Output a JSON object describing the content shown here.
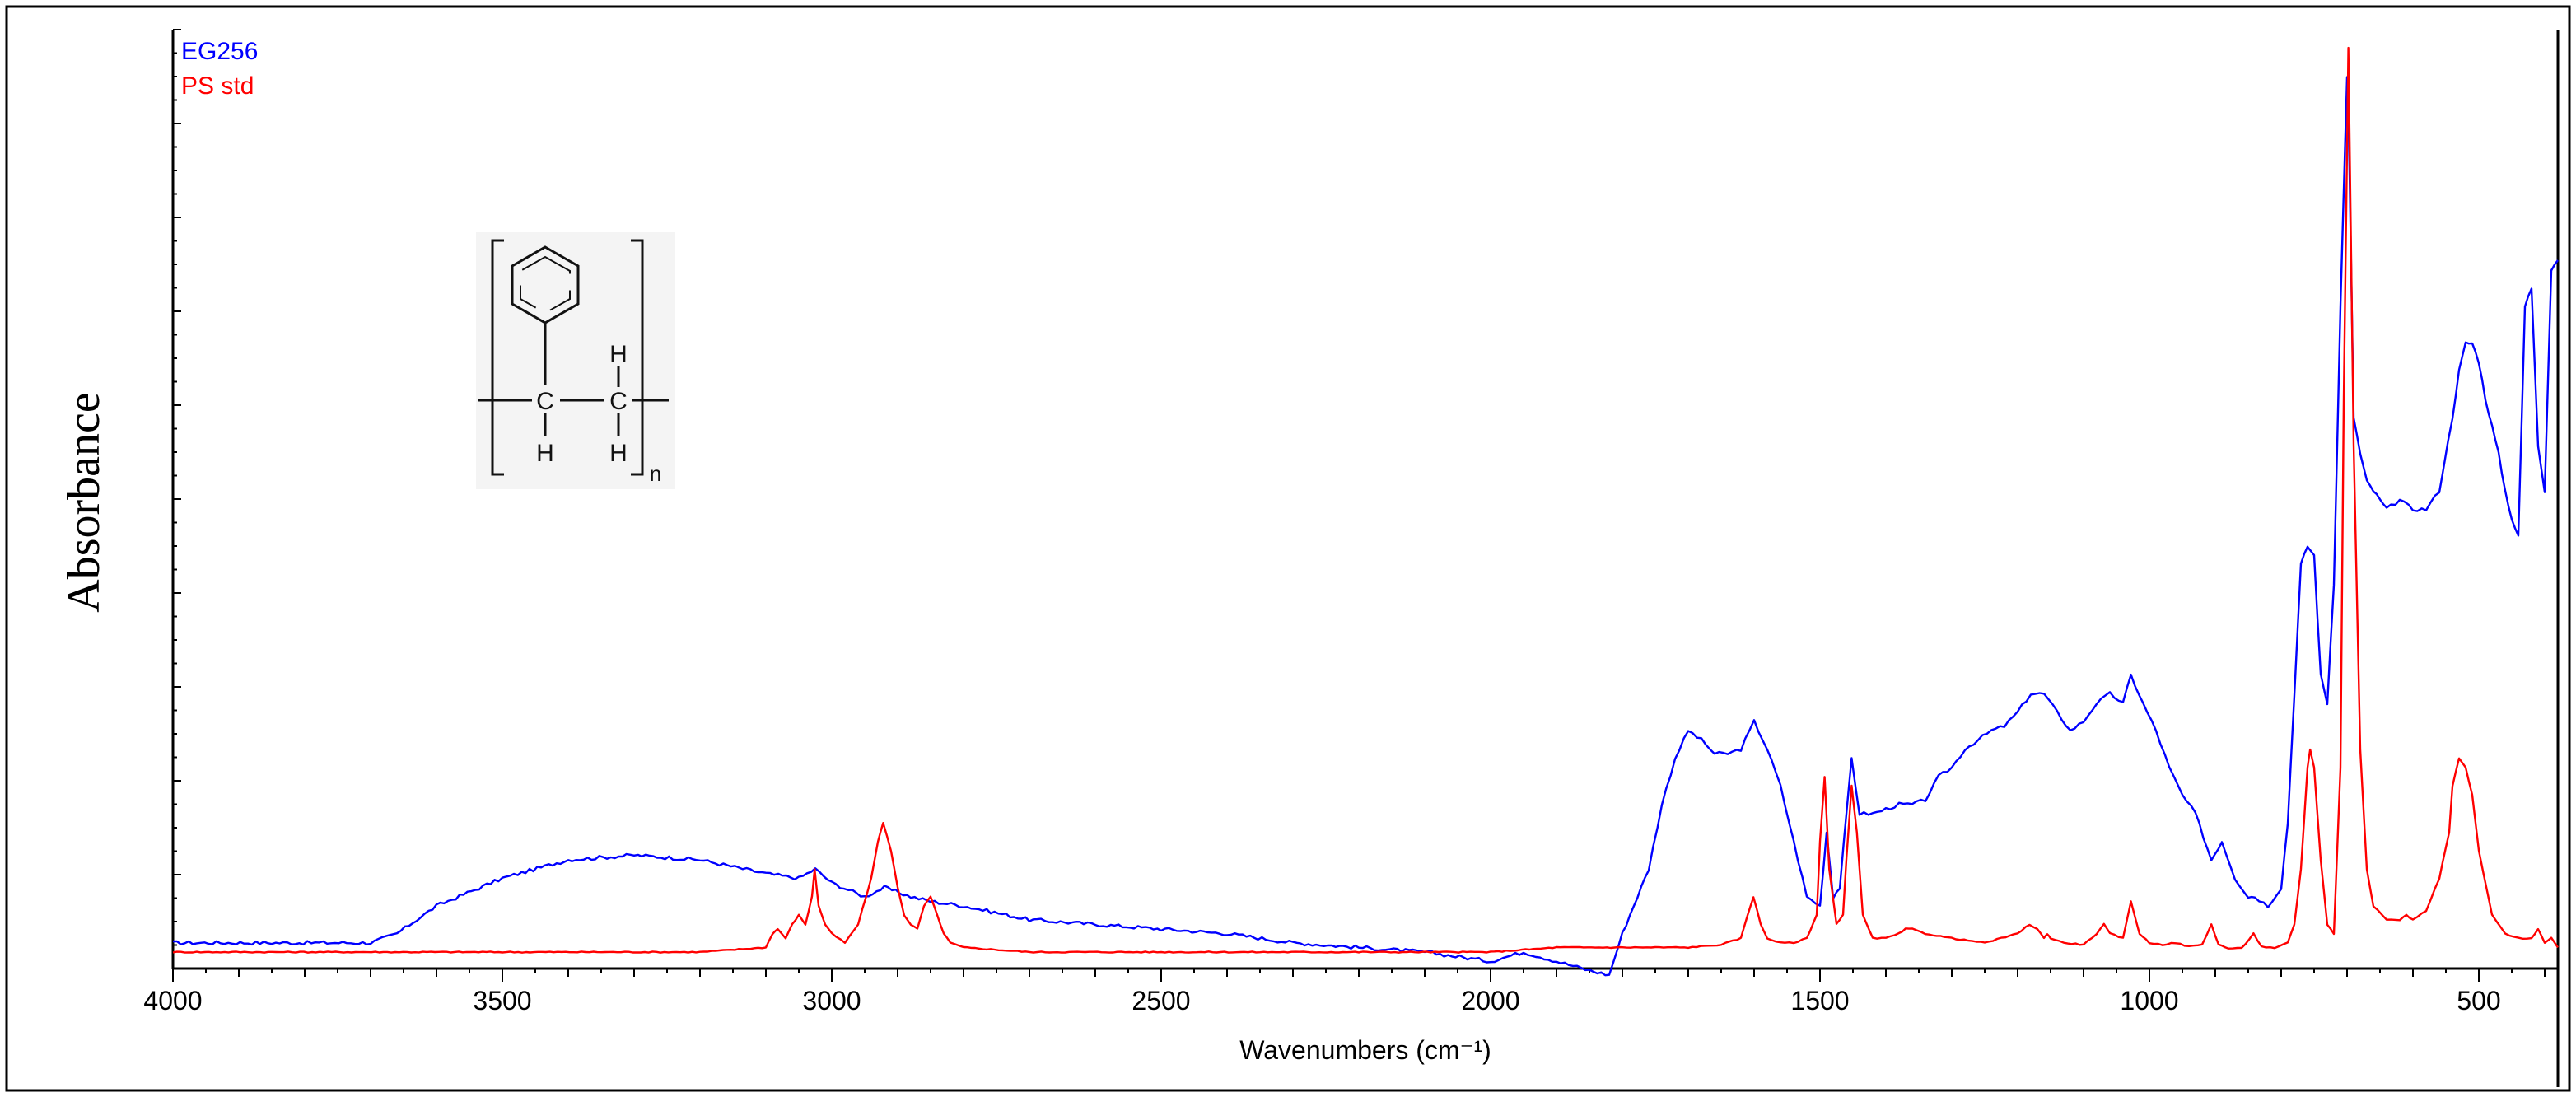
{
  "chart_data": {
    "type": "line",
    "title": "",
    "xlabel": "Wavenumbers (cm⁻¹)",
    "ylabel": "Absorbance",
    "xlim": [
      4000,
      380
    ],
    "x_reversed": true,
    "ylim": [
      0,
      1.0
    ],
    "y_tick_labels_shown": false,
    "x_ticks": [
      4000,
      3500,
      3000,
      2500,
      2000,
      1500,
      1000,
      500
    ],
    "x_tick_labels": [
      "4000",
      "3500",
      "3000",
      "2500",
      "2000",
      "1500",
      "1000",
      "500"
    ],
    "grid": false,
    "legend_position": "top-left",
    "series": [
      {
        "name": "EG256",
        "color": "#0000ff",
        "x": [
          4000,
          3700,
          3660,
          3600,
          3500,
          3400,
          3300,
          3200,
          3100,
          3050,
          3025,
          3000,
          2950,
          2920,
          2880,
          2850,
          2800,
          2700,
          2600,
          2500,
          2400,
          2300,
          2200,
          2100,
          2000,
          1950,
          1900,
          1850,
          1820,
          1800,
          1760,
          1740,
          1720,
          1700,
          1680,
          1660,
          1640,
          1620,
          1600,
          1580,
          1560,
          1540,
          1520,
          1500,
          1490,
          1480,
          1470,
          1452,
          1440,
          1420,
          1400,
          1380,
          1360,
          1340,
          1320,
          1300,
          1280,
          1260,
          1240,
          1220,
          1200,
          1180,
          1160,
          1140,
          1120,
          1100,
          1080,
          1060,
          1040,
          1028,
          1010,
          990,
          970,
          950,
          930,
          906,
          890,
          870,
          850,
          840,
          820,
          800,
          790,
          780,
          770,
          760,
          750,
          740,
          730,
          720,
          710,
          700,
          698,
          690,
          680,
          670,
          660,
          650,
          640,
          620,
          600,
          580,
          560,
          540,
          530,
          520,
          510,
          500,
          490,
          480,
          470,
          460,
          450,
          440,
          430,
          420,
          410,
          400,
          390,
          380
        ],
        "y": [
          0.01,
          0.01,
          0.02,
          0.05,
          0.08,
          0.1,
          0.105,
          0.1,
          0.085,
          0.08,
          0.09,
          0.075,
          0.06,
          0.07,
          0.06,
          0.055,
          0.05,
          0.035,
          0.03,
          0.025,
          0.02,
          0.01,
          0.005,
          0.0,
          -0.01,
          0.0,
          -0.01,
          -0.02,
          -0.025,
          0.02,
          0.09,
          0.16,
          0.21,
          0.24,
          0.23,
          0.215,
          0.215,
          0.22,
          0.25,
          0.22,
          0.18,
          0.12,
          0.06,
          0.05,
          0.13,
          0.06,
          0.07,
          0.21,
          0.15,
          0.15,
          0.155,
          0.16,
          0.16,
          0.165,
          0.19,
          0.2,
          0.22,
          0.23,
          0.24,
          0.245,
          0.26,
          0.28,
          0.28,
          0.26,
          0.24,
          0.25,
          0.27,
          0.28,
          0.27,
          0.3,
          0.27,
          0.24,
          0.2,
          0.17,
          0.15,
          0.1,
          0.12,
          0.08,
          0.06,
          0.06,
          0.05,
          0.07,
          0.14,
          0.28,
          0.42,
          0.44,
          0.43,
          0.3,
          0.27,
          0.4,
          0.7,
          0.95,
          0.92,
          0.58,
          0.54,
          0.51,
          0.5,
          0.49,
          0.48,
          0.49,
          0.48,
          0.48,
          0.5,
          0.58,
          0.63,
          0.66,
          0.66,
          0.64,
          0.6,
          0.57,
          0.54,
          0.5,
          0.47,
          0.45,
          0.7,
          0.72,
          0.55,
          0.5,
          0.74,
          0.75
        ],
        "annotations": [
          {
            "x": 3400,
            "label": ""
          },
          {
            "x": 698,
            "label": ""
          }
        ]
      },
      {
        "name": "PS std",
        "color": "#ff0000",
        "x": [
          4000,
          3500,
          3200,
          3100,
          3090,
          3082,
          3070,
          3060,
          3050,
          3040,
          3030,
          3026,
          3020,
          3010,
          3000,
          2980,
          2960,
          2940,
          2930,
          2922,
          2910,
          2900,
          2890,
          2880,
          2870,
          2860,
          2850,
          2840,
          2830,
          2820,
          2800,
          2700,
          2500,
          2200,
          2000,
          1900,
          1800,
          1750,
          1700,
          1650,
          1620,
          1610,
          1601,
          1590,
          1580,
          1560,
          1540,
          1520,
          1505,
          1500,
          1493,
          1486,
          1475,
          1465,
          1460,
          1452,
          1444,
          1435,
          1420,
          1400,
          1380,
          1370,
          1360,
          1340,
          1300,
          1250,
          1200,
          1182,
          1170,
          1160,
          1155,
          1150,
          1130,
          1100,
          1080,
          1069,
          1060,
          1040,
          1028,
          1015,
          1000,
          980,
          960,
          940,
          920,
          906,
          895,
          880,
          860,
          842,
          830,
          810,
          790,
          780,
          770,
          760,
          756,
          750,
          740,
          730,
          720,
          710,
          705,
          698,
          690,
          680,
          670,
          660,
          640,
          620,
          610,
          600,
          580,
          560,
          545,
          540,
          530,
          520,
          510,
          500,
          480,
          460,
          440,
          420,
          410,
          400,
          390,
          380
        ],
        "y": [
          0.0,
          0.0,
          0.0,
          0.005,
          0.02,
          0.025,
          0.015,
          0.03,
          0.04,
          0.03,
          0.06,
          0.09,
          0.05,
          0.03,
          0.02,
          0.01,
          0.03,
          0.08,
          0.12,
          0.14,
          0.11,
          0.07,
          0.04,
          0.03,
          0.025,
          0.05,
          0.06,
          0.04,
          0.02,
          0.01,
          0.005,
          0.0,
          0.0,
          0.0,
          0.0,
          0.005,
          0.005,
          0.005,
          0.005,
          0.008,
          0.015,
          0.04,
          0.06,
          0.03,
          0.015,
          0.01,
          0.01,
          0.015,
          0.04,
          0.12,
          0.19,
          0.09,
          0.03,
          0.04,
          0.1,
          0.18,
          0.13,
          0.04,
          0.015,
          0.015,
          0.02,
          0.025,
          0.025,
          0.02,
          0.015,
          0.01,
          0.02,
          0.03,
          0.025,
          0.015,
          0.02,
          0.015,
          0.01,
          0.008,
          0.02,
          0.03,
          0.02,
          0.015,
          0.055,
          0.02,
          0.01,
          0.008,
          0.01,
          0.006,
          0.008,
          0.03,
          0.008,
          0.004,
          0.004,
          0.02,
          0.006,
          0.004,
          0.01,
          0.03,
          0.09,
          0.2,
          0.22,
          0.2,
          0.1,
          0.03,
          0.02,
          0.2,
          0.6,
          0.98,
          0.55,
          0.22,
          0.09,
          0.05,
          0.035,
          0.035,
          0.04,
          0.035,
          0.045,
          0.08,
          0.13,
          0.18,
          0.21,
          0.2,
          0.17,
          0.11,
          0.04,
          0.02,
          0.015,
          0.015,
          0.025,
          0.01,
          0.015,
          0.005
        ],
        "annotations": []
      }
    ],
    "inset": {
      "description": "polystyrene repeat unit structure",
      "labels": {
        "c1": "C",
        "c2": "C",
        "h_top": "H",
        "h_bottom_left": "H",
        "h_bottom_right": "H",
        "subscript": "n"
      }
    }
  }
}
